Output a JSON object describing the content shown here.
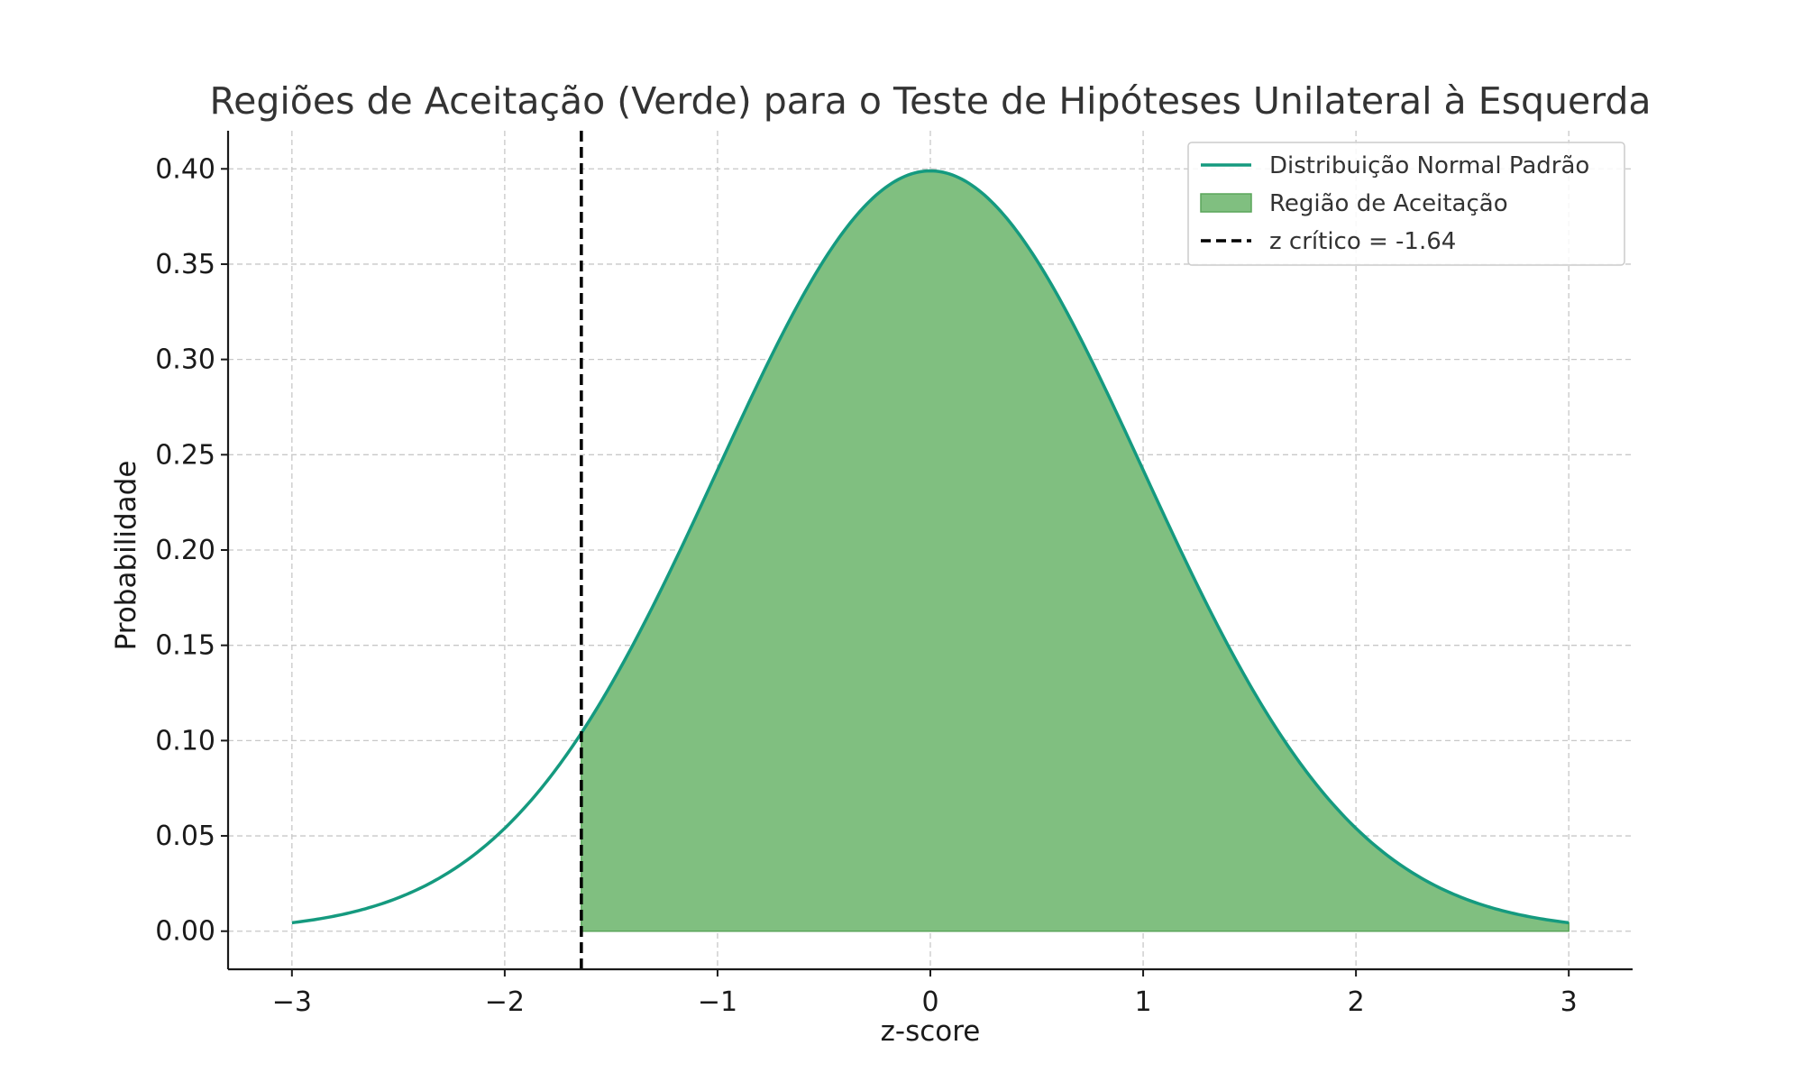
{
  "chart_data": {
    "type": "area",
    "title": "Regiões de Aceitação (Verde) para o Teste de Hipóteses Unilateral à Esquerda",
    "xlabel": "z-score",
    "ylabel": "Probabilidade",
    "xlim": [
      -3.3,
      3.3
    ],
    "ylim": [
      -0.02,
      0.42
    ],
    "x_ticks": [
      -3,
      -2,
      -1,
      0,
      1,
      2,
      3
    ],
    "x_tick_labels": [
      "−3",
      "−2",
      "−1",
      "0",
      "1",
      "2",
      "3"
    ],
    "y_ticks": [
      0.0,
      0.05,
      0.1,
      0.15,
      0.2,
      0.25,
      0.3,
      0.35,
      0.4
    ],
    "y_tick_labels": [
      "0.00",
      "0.05",
      "0.10",
      "0.15",
      "0.20",
      "0.25",
      "0.30",
      "0.35",
      "0.40"
    ],
    "grid": true,
    "legend_position": "top-right",
    "series": [
      {
        "name": "Distribuição Normal Padrão",
        "kind": "line",
        "color": "#159a7f",
        "x": [
          -3.0,
          -2.75,
          -2.5,
          -2.25,
          -2.0,
          -1.75,
          -1.64,
          -1.5,
          -1.25,
          -1.0,
          -0.75,
          -0.5,
          -0.25,
          0.0,
          0.25,
          0.5,
          0.75,
          1.0,
          1.25,
          1.5,
          1.75,
          2.0,
          2.25,
          2.5,
          2.75,
          3.0
        ],
        "y": [
          0.0044,
          0.0091,
          0.0175,
          0.0317,
          0.054,
          0.0863,
          0.104,
          0.1295,
          0.1826,
          0.242,
          0.3011,
          0.3521,
          0.3867,
          0.3989,
          0.3867,
          0.3521,
          0.3011,
          0.242,
          0.1826,
          0.1295,
          0.0863,
          0.054,
          0.0317,
          0.0175,
          0.0091,
          0.0044
        ]
      },
      {
        "name": "Região de Aceitação",
        "kind": "fill",
        "color": "#80bf80",
        "x_range": [
          -1.64,
          3.0
        ]
      },
      {
        "name": "z crítico = -1.64",
        "kind": "vline",
        "color": "#000000",
        "x": -1.64
      }
    ]
  }
}
